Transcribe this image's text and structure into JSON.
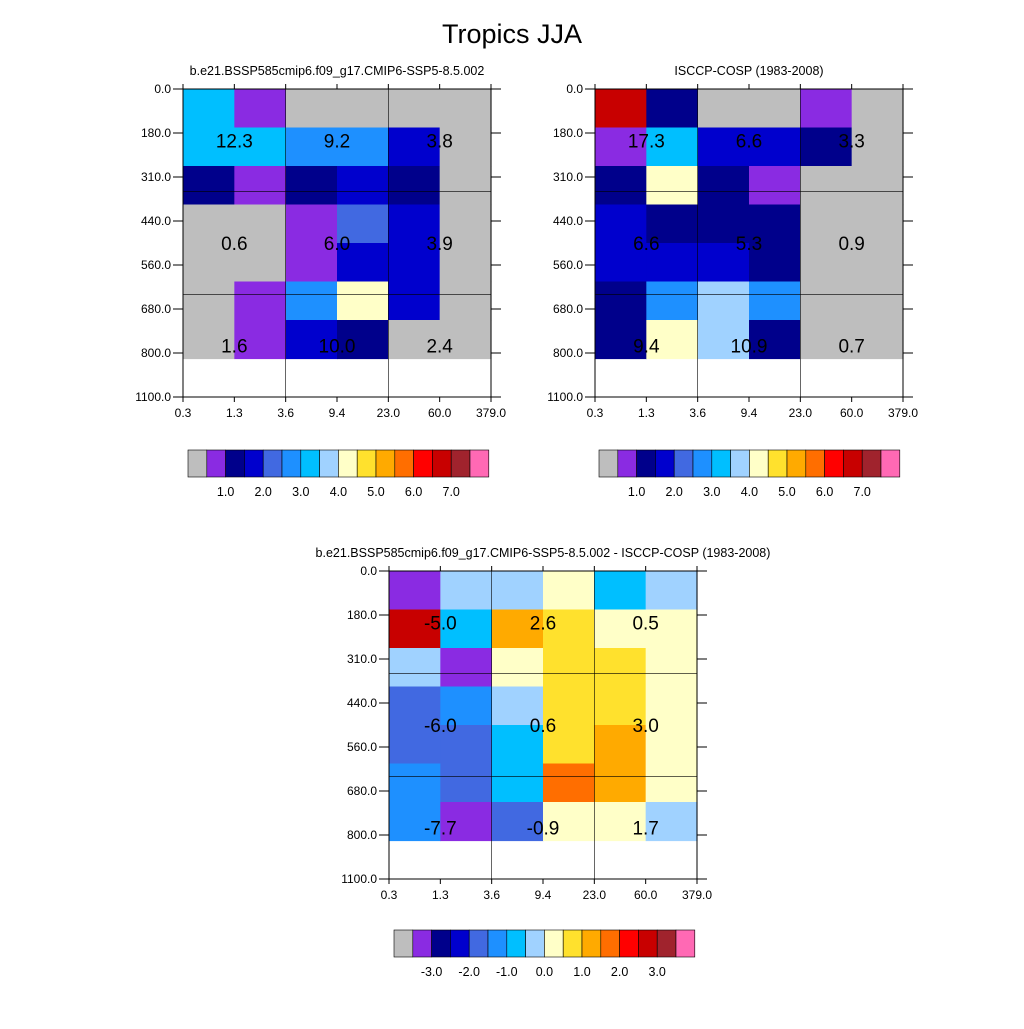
{
  "figure_title": "Tropics JJA",
  "chart_data": [
    {
      "type": "heatmap",
      "title": "b.e21.BSSP585cmip6.f09_g17.CMIP6-SSP5-8.5.002",
      "x_ticks": [
        "0.3",
        "1.3",
        "3.6",
        "9.4",
        "23.0",
        "60.0",
        "379.0"
      ],
      "y_ticks": [
        "0.0",
        "180.0",
        "310.0",
        "440.0",
        "560.0",
        "680.0",
        "800.0",
        "1100.0"
      ],
      "cells": [
        [
          6,
          1,
          0,
          0,
          0,
          0
        ],
        [
          6,
          6,
          5,
          5,
          3,
          0
        ],
        [
          2,
          1,
          2,
          3,
          2,
          0
        ],
        [
          0,
          0,
          1,
          4,
          3,
          0
        ],
        [
          0,
          0,
          1,
          3,
          3,
          0
        ],
        [
          0,
          1,
          5,
          8,
          3,
          0
        ],
        [
          0,
          1,
          3,
          2,
          0,
          0
        ]
      ],
      "boxed_values": [
        [
          "12.3",
          "9.2",
          "3.8"
        ],
        [
          "0.6",
          "6.0",
          "3.9"
        ],
        [
          "1.6",
          "10.0",
          "2.4"
        ]
      ],
      "colorbar_labels": [
        "1.0",
        "2.0",
        "3.0",
        "4.0",
        "5.0",
        "6.0",
        "7.0"
      ]
    },
    {
      "type": "heatmap",
      "title": "ISCCP-COSP (1983-2008)",
      "x_ticks": [
        "0.3",
        "1.3",
        "3.6",
        "9.4",
        "23.0",
        "60.0",
        "379.0"
      ],
      "y_ticks": [
        "0.0",
        "180.0",
        "310.0",
        "440.0",
        "560.0",
        "680.0",
        "800.0",
        "1100.0"
      ],
      "cells": [
        [
          13,
          2,
          0,
          0,
          1,
          0
        ],
        [
          1,
          6,
          3,
          3,
          2,
          0
        ],
        [
          2,
          8,
          2,
          1,
          0,
          0
        ],
        [
          3,
          2,
          2,
          2,
          0,
          0
        ],
        [
          3,
          3,
          3,
          2,
          0,
          0
        ],
        [
          2,
          5,
          7,
          5,
          0,
          0
        ],
        [
          2,
          8,
          7,
          2,
          0,
          0
        ]
      ],
      "boxed_values": [
        [
          "17.3",
          "6.6",
          "3.3"
        ],
        [
          "6.6",
          "5.3",
          "0.9"
        ],
        [
          "9.4",
          "10.9",
          "0.7"
        ]
      ],
      "colorbar_labels": [
        "1.0",
        "2.0",
        "3.0",
        "4.0",
        "5.0",
        "6.0",
        "7.0"
      ]
    },
    {
      "type": "heatmap",
      "title": "b.e21.BSSP585cmip6.f09_g17.CMIP6-SSP5-8.5.002 - ISCCP-COSP (1983-2008)",
      "x_ticks": [
        "0.3",
        "1.3",
        "3.6",
        "9.4",
        "23.0",
        "60.0",
        "379.0"
      ],
      "y_ticks": [
        "0.0",
        "180.0",
        "310.0",
        "440.0",
        "560.0",
        "680.0",
        "800.0",
        "1100.0"
      ],
      "cells": [
        [
          1,
          7,
          7,
          8,
          6,
          7
        ],
        [
          13,
          6,
          10,
          9,
          8,
          8
        ],
        [
          7,
          1,
          8,
          9,
          9,
          8
        ],
        [
          4,
          5,
          7,
          9,
          9,
          8
        ],
        [
          4,
          4,
          6,
          9,
          10,
          8
        ],
        [
          5,
          4,
          6,
          11,
          10,
          8
        ],
        [
          5,
          1,
          4,
          8,
          8,
          7
        ]
      ],
      "boxed_values": [
        [
          "-5.0",
          "2.6",
          "0.5"
        ],
        [
          "-6.0",
          "0.6",
          "3.0"
        ],
        [
          "-7.7",
          "-0.9",
          "1.7"
        ]
      ],
      "colorbar_labels": [
        "-3.0",
        "-2.0",
        "-1.0",
        "0.0",
        "1.0",
        "2.0",
        "3.0"
      ]
    }
  ],
  "palette": [
    "#bebebe",
    "#8a2be2",
    "#00008b",
    "#0000cd",
    "#4169e1",
    "#1e90ff",
    "#00bfff",
    "#a0d2ff",
    "#ffffc8",
    "#ffe12d",
    "#ffaa00",
    "#ff6e00",
    "#ff0000",
    "#c80000",
    "#a0232d",
    "#ff69b4"
  ]
}
